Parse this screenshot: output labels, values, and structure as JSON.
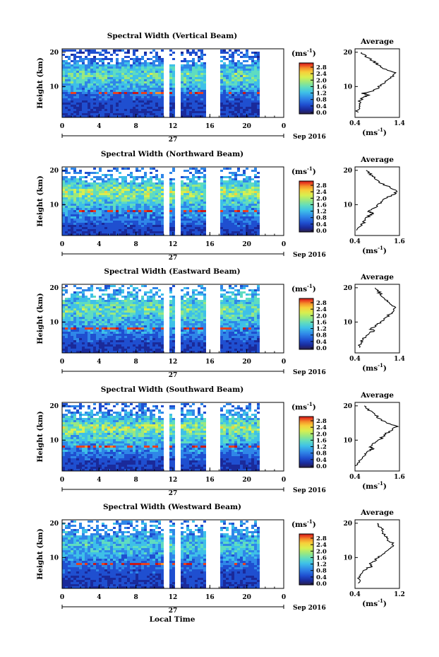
{
  "chart_data": [
    {
      "type": "heatmap",
      "title": "Spectral Width (Vertical Beam)",
      "ylabel": "Height (km)",
      "x_ticks": [
        "0",
        "4",
        "8",
        "12",
        "16",
        "20",
        "0"
      ],
      "y_ticks": [
        "20",
        "10"
      ],
      "date_day": "27",
      "date_label": "Sep 2016",
      "colorbar_unit": "(ms",
      "colorbar_unit_sup": "-1",
      "colorbar_ticks": [
        "2.8",
        "2.4",
        "2.0",
        "1.6",
        "1.2",
        "0.8",
        "0.4",
        "0.0"
      ],
      "avg_title": "Average",
      "avg_xticks": [
        "0.4",
        "1.4"
      ],
      "avg_yticks": [
        "20",
        "10"
      ],
      "avg_xlabel": "(ms",
      "avg_xlabel_sup": "-1",
      "avg_xlim": [
        0.4,
        1.4
      ],
      "avg_profile": {
        "height_km": [
          2.5,
          4,
          5,
          6,
          7,
          7.5,
          8,
          9,
          10,
          11,
          12,
          13,
          14,
          15,
          16,
          17,
          18,
          19,
          20
        ],
        "value": [
          0.45,
          0.48,
          0.5,
          0.52,
          0.6,
          0.7,
          0.58,
          0.85,
          0.95,
          1.05,
          1.15,
          1.25,
          1.3,
          1.1,
          0.95,
          0.85,
          0.75,
          0.62,
          0.55
        ]
      }
    },
    {
      "type": "heatmap",
      "title": "Spectral Width (Northward Beam)",
      "ylabel": "Height (km)",
      "x_ticks": [
        "0",
        "4",
        "8",
        "12",
        "16",
        "20",
        "0"
      ],
      "y_ticks": [
        "20",
        "10"
      ],
      "date_day": "27",
      "date_label": "Sep 2016",
      "colorbar_unit": "(ms",
      "colorbar_unit_sup": "-1",
      "colorbar_ticks": [
        "2.8",
        "2.4",
        "2.0",
        "1.6",
        "1.2",
        "0.8",
        "0.4",
        "0.0"
      ],
      "avg_title": "Average",
      "avg_xticks": [
        "0.4",
        "1.6"
      ],
      "avg_yticks": [
        "20",
        "10"
      ],
      "avg_xlabel": "(ms",
      "avg_xlabel_sup": "-1",
      "avg_xlim": [
        0.4,
        1.6
      ],
      "avg_profile": {
        "height_km": [
          2.5,
          4,
          5,
          6,
          7,
          7.5,
          8,
          9,
          10,
          11,
          12,
          13,
          14,
          15,
          16,
          17,
          18,
          19,
          20
        ],
        "value": [
          0.45,
          0.55,
          0.65,
          0.7,
          0.8,
          0.9,
          0.75,
          0.9,
          1.05,
          1.15,
          1.25,
          1.45,
          1.5,
          1.35,
          1.15,
          1.0,
          0.9,
          0.8,
          0.7
        ]
      }
    },
    {
      "type": "heatmap",
      "title": "Spectral Width (Eastward Beam)",
      "ylabel": "Height (km)",
      "x_ticks": [
        "0",
        "4",
        "8",
        "12",
        "16",
        "20",
        "0"
      ],
      "y_ticks": [
        "20",
        "10"
      ],
      "date_day": "27",
      "date_label": "Sep 2016",
      "colorbar_unit": "(ms",
      "colorbar_unit_sup": "-1",
      "colorbar_ticks": [
        "2.8",
        "2.4",
        "2.0",
        "1.6",
        "1.2",
        "0.8",
        "0.4",
        "0.0"
      ],
      "avg_title": "Average",
      "avg_xticks": [
        "0.4",
        "1.4"
      ],
      "avg_yticks": [
        "20",
        "10"
      ],
      "avg_xlabel": "(ms",
      "avg_xlabel_sup": "-1",
      "avg_xlim": [
        0.4,
        1.4
      ],
      "avg_profile": {
        "height_km": [
          2.5,
          4,
          5,
          6,
          7,
          7.5,
          8,
          9,
          10,
          11,
          12,
          13,
          14,
          15,
          16,
          17,
          18,
          19,
          20
        ],
        "value": [
          0.48,
          0.52,
          0.58,
          0.65,
          0.75,
          0.85,
          0.72,
          0.88,
          0.98,
          1.08,
          1.15,
          1.25,
          1.3,
          1.22,
          1.12,
          1.05,
          0.98,
          0.92,
          0.85
        ]
      }
    },
    {
      "type": "heatmap",
      "title": "Spectral Width (Southward Beam)",
      "ylabel": "Height (km)",
      "x_ticks": [
        "0",
        "4",
        "8",
        "12",
        "16",
        "20",
        "0"
      ],
      "y_ticks": [
        "20",
        "10"
      ],
      "date_day": "27",
      "date_label": "Sep 2016",
      "colorbar_unit": "(ms",
      "colorbar_unit_sup": "-1",
      "colorbar_ticks": [
        "2.8",
        "2.4",
        "2.0",
        "1.6",
        "1.2",
        "0.8",
        "0.4",
        "0.0"
      ],
      "avg_title": "Average",
      "avg_xticks": [
        "0.4",
        "1.6"
      ],
      "avg_yticks": [
        "20",
        "10"
      ],
      "avg_xlabel": "(ms",
      "avg_xlabel_sup": "-1",
      "avg_xlim": [
        0.4,
        1.6
      ],
      "avg_profile": {
        "height_km": [
          2.5,
          4,
          5,
          6,
          7,
          7.5,
          8,
          9,
          10,
          11,
          12,
          13,
          14,
          15,
          16,
          17,
          18,
          19,
          20
        ],
        "value": [
          0.45,
          0.5,
          0.6,
          0.68,
          0.78,
          0.88,
          0.8,
          0.92,
          1.05,
          1.15,
          1.25,
          1.4,
          1.52,
          1.3,
          1.1,
          0.98,
          0.85,
          0.75,
          0.65
        ]
      }
    },
    {
      "type": "heatmap",
      "title": "Spectral Width (Westward Beam)",
      "ylabel": "Height (km)",
      "x_ticks": [
        "0",
        "4",
        "8",
        "12",
        "16",
        "20",
        "0"
      ],
      "y_ticks": [
        "20",
        "10"
      ],
      "date_day": "27",
      "date_label": "Sep 2016",
      "colorbar_unit": "(ms",
      "colorbar_unit_sup": "-1",
      "colorbar_ticks": [
        "2.8",
        "2.4",
        "2.0",
        "1.6",
        "1.2",
        "0.8",
        "0.4",
        "0.0"
      ],
      "avg_title": "Average",
      "avg_xticks": [
        "0.4",
        "1.2"
      ],
      "avg_yticks": [
        "20",
        "10"
      ],
      "avg_xlabel": "(ms",
      "avg_xlabel_sup": "-1",
      "avg_xlim": [
        0.4,
        1.2
      ],
      "avg_profile": {
        "height_km": [
          2.5,
          4,
          5,
          6,
          7,
          7.5,
          8,
          9,
          10,
          11,
          12,
          13,
          14,
          15,
          16,
          17,
          18,
          19,
          20
        ],
        "value": [
          0.45,
          0.48,
          0.52,
          0.56,
          0.62,
          0.72,
          0.66,
          0.74,
          0.82,
          0.9,
          0.96,
          1.05,
          1.1,
          1.0,
          0.95,
          0.92,
          0.9,
          0.85,
          0.8
        ]
      }
    }
  ],
  "shared": {
    "xlabel": "Local Time",
    "colorscale": [
      "#2b1f4a",
      "#1a2a9a",
      "#1f4fd0",
      "#2f86e8",
      "#3ec0e8",
      "#5fdcc0",
      "#9ae880",
      "#d8ef50",
      "#f7d03a",
      "#f5902a",
      "#e84020",
      "#c81818"
    ],
    "data_gaps_hours": [
      [
        10.8,
        11.4
      ],
      [
        12.2,
        12.8
      ],
      [
        15.4,
        16.9
      ]
    ],
    "data_end_hour": 21.3
  }
}
